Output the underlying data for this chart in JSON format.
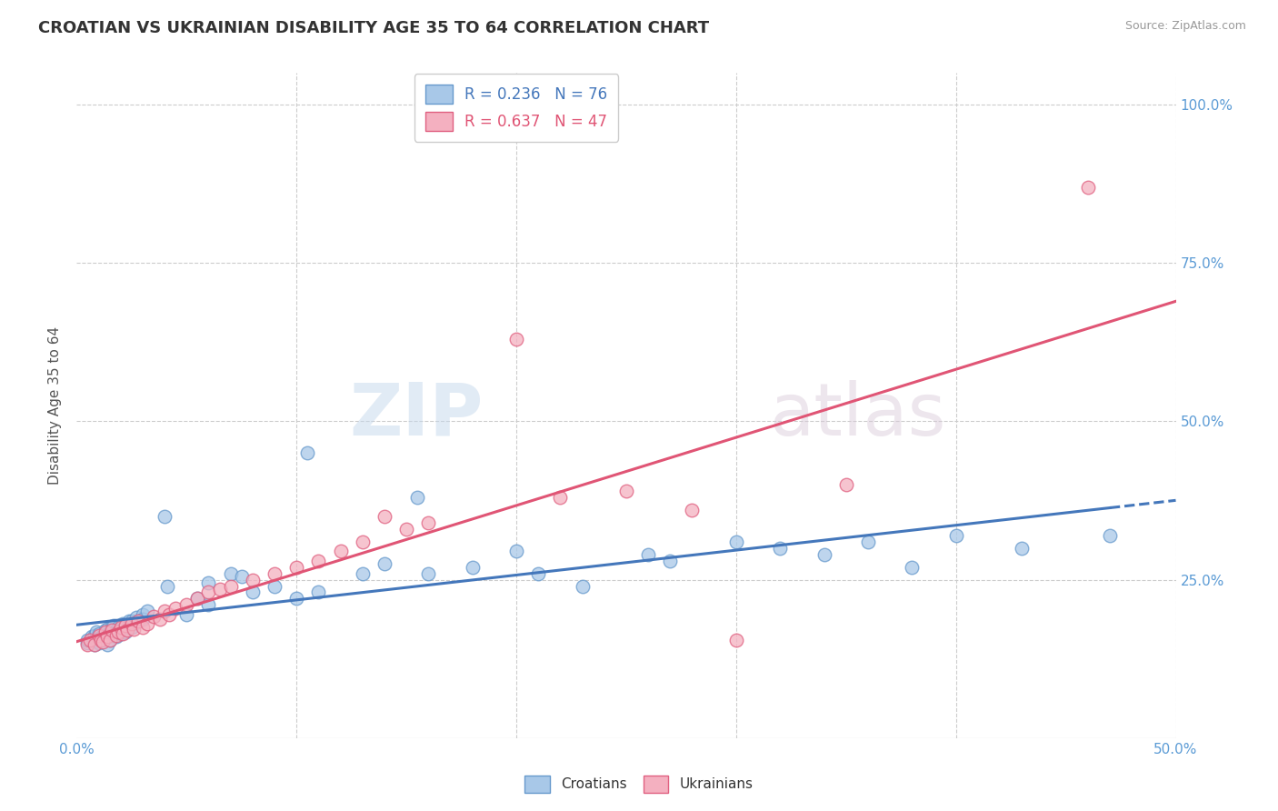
{
  "title": "CROATIAN VS UKRAINIAN DISABILITY AGE 35 TO 64 CORRELATION CHART",
  "source_text": "Source: ZipAtlas.com",
  "ylabel": "Disability Age 35 to 64",
  "xlim": [
    0.0,
    0.5
  ],
  "ylim": [
    0.0,
    1.05
  ],
  "x_ticks": [
    0.0,
    0.1,
    0.2,
    0.3,
    0.4,
    0.5
  ],
  "y_ticks": [
    0.0,
    0.25,
    0.5,
    0.75,
    1.0
  ],
  "croatian_R": 0.236,
  "croatian_N": 76,
  "ukrainian_R": 0.637,
  "ukrainian_N": 47,
  "croatian_color": "#A8C8E8",
  "ukrainian_color": "#F4B0C0",
  "croatian_edge_color": "#6699CC",
  "ukrainian_edge_color": "#E06080",
  "croatian_line_color": "#4477BB",
  "ukrainian_line_color": "#E05575",
  "background_color": "#FFFFFF",
  "grid_color": "#CCCCCC",
  "watermark_zip": "ZIP",
  "watermark_atlas": "atlas",
  "croatian_scatter_x": [
    0.005,
    0.005,
    0.007,
    0.008,
    0.008,
    0.009,
    0.009,
    0.01,
    0.01,
    0.01,
    0.012,
    0.012,
    0.013,
    0.013,
    0.014,
    0.014,
    0.015,
    0.015,
    0.015,
    0.016,
    0.016,
    0.017,
    0.017,
    0.018,
    0.018,
    0.018,
    0.019,
    0.019,
    0.02,
    0.02,
    0.021,
    0.021,
    0.022,
    0.022,
    0.023,
    0.024,
    0.024,
    0.025,
    0.025,
    0.026,
    0.027,
    0.028,
    0.03,
    0.03,
    0.032,
    0.04,
    0.041,
    0.05,
    0.055,
    0.06,
    0.06,
    0.07,
    0.075,
    0.08,
    0.09,
    0.1,
    0.105,
    0.11,
    0.13,
    0.14,
    0.155,
    0.16,
    0.18,
    0.2,
    0.21,
    0.23,
    0.26,
    0.27,
    0.3,
    0.32,
    0.34,
    0.36,
    0.38,
    0.4,
    0.43,
    0.47
  ],
  "croatian_scatter_y": [
    0.15,
    0.155,
    0.16,
    0.148,
    0.162,
    0.155,
    0.168,
    0.15,
    0.165,
    0.158,
    0.162,
    0.155,
    0.17,
    0.16,
    0.148,
    0.172,
    0.168,
    0.162,
    0.155,
    0.175,
    0.168,
    0.165,
    0.178,
    0.17,
    0.165,
    0.16,
    0.175,
    0.168,
    0.172,
    0.165,
    0.18,
    0.172,
    0.178,
    0.168,
    0.175,
    0.185,
    0.178,
    0.185,
    0.175,
    0.182,
    0.19,
    0.185,
    0.195,
    0.188,
    0.2,
    0.35,
    0.24,
    0.195,
    0.22,
    0.245,
    0.21,
    0.26,
    0.255,
    0.23,
    0.24,
    0.22,
    0.45,
    0.23,
    0.26,
    0.275,
    0.38,
    0.26,
    0.27,
    0.295,
    0.26,
    0.24,
    0.29,
    0.28,
    0.31,
    0.3,
    0.29,
    0.31,
    0.27,
    0.32,
    0.3,
    0.32
  ],
  "ukrainian_scatter_x": [
    0.005,
    0.006,
    0.008,
    0.01,
    0.011,
    0.012,
    0.013,
    0.014,
    0.015,
    0.016,
    0.018,
    0.019,
    0.02,
    0.021,
    0.022,
    0.023,
    0.025,
    0.026,
    0.028,
    0.03,
    0.032,
    0.035,
    0.038,
    0.04,
    0.042,
    0.045,
    0.05,
    0.055,
    0.06,
    0.065,
    0.07,
    0.08,
    0.09,
    0.1,
    0.11,
    0.12,
    0.13,
    0.14,
    0.15,
    0.16,
    0.2,
    0.22,
    0.25,
    0.28,
    0.3,
    0.35,
    0.46
  ],
  "ukrainian_scatter_y": [
    0.148,
    0.155,
    0.148,
    0.162,
    0.155,
    0.152,
    0.168,
    0.16,
    0.155,
    0.17,
    0.162,
    0.168,
    0.175,
    0.165,
    0.178,
    0.17,
    0.18,
    0.172,
    0.185,
    0.175,
    0.18,
    0.192,
    0.188,
    0.2,
    0.195,
    0.205,
    0.21,
    0.22,
    0.23,
    0.235,
    0.24,
    0.25,
    0.26,
    0.27,
    0.28,
    0.295,
    0.31,
    0.35,
    0.33,
    0.34,
    0.63,
    0.38,
    0.39,
    0.36,
    0.155,
    0.4,
    0.87
  ]
}
